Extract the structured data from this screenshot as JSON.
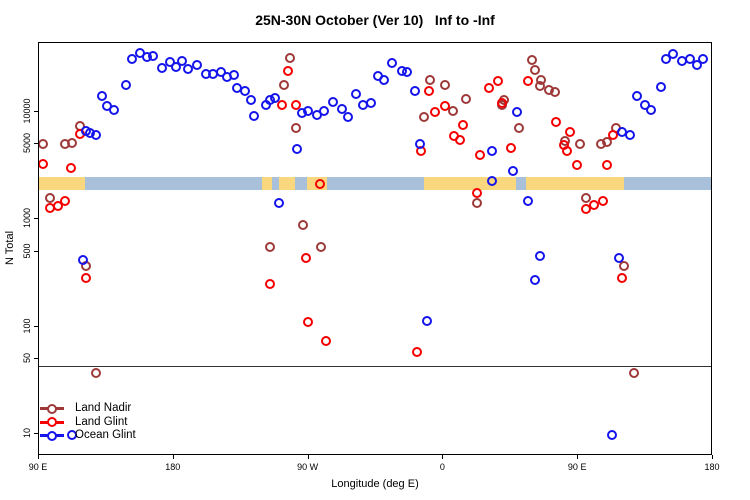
{
  "title": "25N-30N October (Ver 10)   Inf to -Inf",
  "axes": {
    "x_label": "Longitude (deg E)",
    "y_label": "N Total",
    "x_ticks": [
      {
        "label": "90 E",
        "deg": 90
      },
      {
        "label": "180",
        "deg": 180
      },
      {
        "label": "90 W",
        "deg": 270
      },
      {
        "label": "0",
        "deg": 360
      },
      {
        "label": "90 E",
        "deg": 450
      },
      {
        "label": "180",
        "deg": 540
      }
    ],
    "y_ticks": [
      {
        "label": "10000",
        "n": 10000
      },
      {
        "label": "5000",
        "n": 5000
      },
      {
        "label": "1000",
        "n": 1000
      },
      {
        "label": "500",
        "n": 500
      },
      {
        "label": "100",
        "n": 100
      },
      {
        "label": "50",
        "n": 50
      },
      {
        "label": "10",
        "n": 10
      }
    ]
  },
  "colors": {
    "land_nadir": "#9E3939",
    "land_glint": "#F50000",
    "ocean_glint": "#1414EB",
    "band_land": "#F8D77E",
    "band_ocean": "#A9C0DB",
    "reference_line": "#333333"
  },
  "legend": {
    "items": [
      {
        "key": "land_nadir",
        "label": "Land Nadir"
      },
      {
        "key": "land_glint",
        "label": "Land Glint"
      },
      {
        "key": "ocean_glint",
        "label": "Ocean Glint"
      }
    ]
  },
  "reference_line_n": 42,
  "map_band": {
    "n_center": 2100,
    "segments": [
      {
        "from_deg": 90,
        "to_deg": 121.5,
        "surface": "land"
      },
      {
        "from_deg": 121.5,
        "to_deg": 239.5,
        "surface": "ocean"
      },
      {
        "from_deg": 239.5,
        "to_deg": 246,
        "surface": "land"
      },
      {
        "from_deg": 246,
        "to_deg": 251,
        "surface": "ocean"
      },
      {
        "from_deg": 251,
        "to_deg": 261.5,
        "surface": "land"
      },
      {
        "from_deg": 261.5,
        "to_deg": 269.5,
        "surface": "ocean"
      },
      {
        "from_deg": 269.5,
        "to_deg": 283,
        "surface": "land"
      },
      {
        "from_deg": 283,
        "to_deg": 347.5,
        "surface": "ocean"
      },
      {
        "from_deg": 347.5,
        "to_deg": 409,
        "surface": "land"
      },
      {
        "from_deg": 409,
        "to_deg": 415.5,
        "surface": "ocean"
      },
      {
        "from_deg": 415.5,
        "to_deg": 481.5,
        "surface": "land"
      },
      {
        "from_deg": 481.5,
        "to_deg": 540,
        "surface": "ocean"
      }
    ]
  },
  "chart_data": {
    "type": "scatter",
    "title": "25N-30N October (Ver 10)   Inf to -Inf",
    "xlabel": "Longitude (deg E)",
    "ylabel": "N Total",
    "x_axis_deg_range": [
      90,
      540
    ],
    "y_log_range": [
      6,
      44000
    ],
    "grid": false,
    "legend_position": "bottom-left",
    "series": [
      {
        "name": "Land Nadir",
        "color_key": "land_nadir",
        "points": [
          {
            "lon": 93,
            "n": 4940
          },
          {
            "lon": 108,
            "n": 4940
          },
          {
            "lon": 113,
            "n": 5010
          },
          {
            "lon": 118,
            "n": 7240
          },
          {
            "lon": 98,
            "n": 1560
          },
          {
            "lon": 122,
            "n": 362
          },
          {
            "lon": 129,
            "n": 36
          },
          {
            "lon": 254,
            "n": 17700
          },
          {
            "lon": 258,
            "n": 31300
          },
          {
            "lon": 262,
            "n": 6960
          },
          {
            "lon": 267,
            "n": 866
          },
          {
            "lon": 245,
            "n": 544
          },
          {
            "lon": 279,
            "n": 537
          },
          {
            "lon": 348,
            "n": 8820
          },
          {
            "lon": 352,
            "n": 19700
          },
          {
            "lon": 362,
            "n": 17700
          },
          {
            "lon": 367,
            "n": 10100
          },
          {
            "lon": 376,
            "n": 13000
          },
          {
            "lon": 383,
            "n": 1390
          },
          {
            "lon": 400,
            "n": 11500
          },
          {
            "lon": 401,
            "n": 12800
          },
          {
            "lon": 411,
            "n": 6960
          },
          {
            "lon": 420,
            "n": 30200
          },
          {
            "lon": 422,
            "n": 24300
          },
          {
            "lon": 426,
            "n": 19700
          },
          {
            "lon": 425,
            "n": 17300
          },
          {
            "lon": 431,
            "n": 15900
          },
          {
            "lon": 435,
            "n": 15100
          },
          {
            "lon": 442,
            "n": 5310
          },
          {
            "lon": 452,
            "n": 4940
          },
          {
            "lon": 456,
            "n": 1560
          },
          {
            "lon": 466,
            "n": 4940
          },
          {
            "lon": 470,
            "n": 5160
          },
          {
            "lon": 476,
            "n": 6960
          },
          {
            "lon": 481,
            "n": 362
          },
          {
            "lon": 488,
            "n": 36
          }
        ]
      },
      {
        "name": "Land Glint",
        "color_key": "land_glint",
        "points": [
          {
            "lon": 93,
            "n": 3210
          },
          {
            "lon": 112,
            "n": 2950
          },
          {
            "lon": 118,
            "n": 6120
          },
          {
            "lon": 98,
            "n": 1240
          },
          {
            "lon": 103,
            "n": 1310
          },
          {
            "lon": 108,
            "n": 1450
          },
          {
            "lon": 122,
            "n": 276
          },
          {
            "lon": 253,
            "n": 11400
          },
          {
            "lon": 257,
            "n": 23800
          },
          {
            "lon": 262,
            "n": 11500
          },
          {
            "lon": 278,
            "n": 2080
          },
          {
            "lon": 269,
            "n": 424
          },
          {
            "lon": 245,
            "n": 244
          },
          {
            "lon": 270,
            "n": 109
          },
          {
            "lon": 282,
            "n": 72
          },
          {
            "lon": 343,
            "n": 57
          },
          {
            "lon": 346,
            "n": 4220
          },
          {
            "lon": 351,
            "n": 15300
          },
          {
            "lon": 355,
            "n": 9820
          },
          {
            "lon": 362,
            "n": 11100
          },
          {
            "lon": 368,
            "n": 5830
          },
          {
            "lon": 372,
            "n": 5420
          },
          {
            "lon": 374,
            "n": 7390
          },
          {
            "lon": 383,
            "n": 1720
          },
          {
            "lon": 385,
            "n": 3890
          },
          {
            "lon": 391,
            "n": 16400
          },
          {
            "lon": 397,
            "n": 19200
          },
          {
            "lon": 400,
            "n": 11900
          },
          {
            "lon": 406,
            "n": 4540
          },
          {
            "lon": 417,
            "n": 19200
          },
          {
            "lon": 436,
            "n": 7880
          },
          {
            "lon": 441,
            "n": 4870
          },
          {
            "lon": 443,
            "n": 4290
          },
          {
            "lon": 445,
            "n": 6390
          },
          {
            "lon": 450,
            "n": 3160
          },
          {
            "lon": 456,
            "n": 1220
          },
          {
            "lon": 461,
            "n": 1330
          },
          {
            "lon": 467,
            "n": 1460
          },
          {
            "lon": 470,
            "n": 3120
          },
          {
            "lon": 474,
            "n": 5950
          },
          {
            "lon": 480,
            "n": 279
          }
        ]
      },
      {
        "name": "Ocean Glint",
        "color_key": "ocean_glint",
        "points": [
          {
            "lon": 153,
            "n": 30600
          },
          {
            "lon": 158,
            "n": 34700
          },
          {
            "lon": 163,
            "n": 32000
          },
          {
            "lon": 167,
            "n": 33000
          },
          {
            "lon": 173,
            "n": 25300
          },
          {
            "lon": 178,
            "n": 28500
          },
          {
            "lon": 182,
            "n": 25900
          },
          {
            "lon": 186,
            "n": 29400
          },
          {
            "lon": 190,
            "n": 24700
          },
          {
            "lon": 196,
            "n": 26900
          },
          {
            "lon": 202,
            "n": 22200
          },
          {
            "lon": 207,
            "n": 22200
          },
          {
            "lon": 212,
            "n": 23200
          },
          {
            "lon": 216,
            "n": 20800
          },
          {
            "lon": 221,
            "n": 21700
          },
          {
            "lon": 223,
            "n": 16500
          },
          {
            "lon": 228,
            "n": 15500
          },
          {
            "lon": 232,
            "n": 12700
          },
          {
            "lon": 234,
            "n": 9000
          },
          {
            "lon": 242,
            "n": 11500
          },
          {
            "lon": 245,
            "n": 12700
          },
          {
            "lon": 248,
            "n": 13200
          },
          {
            "lon": 251,
            "n": 1400
          },
          {
            "lon": 263,
            "n": 4460
          },
          {
            "lon": 266,
            "n": 9600
          },
          {
            "lon": 270,
            "n": 10100
          },
          {
            "lon": 276,
            "n": 9150
          },
          {
            "lon": 281,
            "n": 9960
          },
          {
            "lon": 287,
            "n": 12300
          },
          {
            "lon": 293,
            "n": 10500
          },
          {
            "lon": 297,
            "n": 8760
          },
          {
            "lon": 302,
            "n": 14300
          },
          {
            "lon": 307,
            "n": 11500
          },
          {
            "lon": 312,
            "n": 11900
          },
          {
            "lon": 317,
            "n": 21100
          },
          {
            "lon": 321,
            "n": 19700
          },
          {
            "lon": 326,
            "n": 28100
          },
          {
            "lon": 333,
            "n": 23500
          },
          {
            "lon": 336,
            "n": 23000
          },
          {
            "lon": 342,
            "n": 15500
          },
          {
            "lon": 345,
            "n": 4940
          },
          {
            "lon": 350,
            "n": 111
          },
          {
            "lon": 393,
            "n": 4220
          },
          {
            "lon": 393,
            "n": 2240
          },
          {
            "lon": 407,
            "n": 2740
          },
          {
            "lon": 410,
            "n": 9820
          },
          {
            "lon": 417,
            "n": 1460
          },
          {
            "lon": 422,
            "n": 266
          },
          {
            "lon": 425,
            "n": 448
          },
          {
            "lon": 478,
            "n": 424
          },
          {
            "lon": 480,
            "n": 6390
          },
          {
            "lon": 485,
            "n": 6030
          },
          {
            "lon": 490,
            "n": 13700
          },
          {
            "lon": 495,
            "n": 11300
          },
          {
            "lon": 499,
            "n": 10300
          },
          {
            "lon": 506,
            "n": 16700
          },
          {
            "lon": 509,
            "n": 30800
          },
          {
            "lon": 514,
            "n": 34400
          },
          {
            "lon": 520,
            "n": 29200
          },
          {
            "lon": 525,
            "n": 30800
          },
          {
            "lon": 530,
            "n": 26700
          },
          {
            "lon": 534,
            "n": 30400
          },
          {
            "lon": 120,
            "n": 409
          },
          {
            "lon": 133,
            "n": 13700
          },
          {
            "lon": 136,
            "n": 11100
          },
          {
            "lon": 141,
            "n": 10300
          },
          {
            "lon": 149,
            "n": 17700
          },
          {
            "lon": 122,
            "n": 6520
          },
          {
            "lon": 125,
            "n": 6220
          },
          {
            "lon": 129,
            "n": 5990
          },
          {
            "lon": 473,
            "n": 9.5
          },
          {
            "lon": 113,
            "n": 9.6
          }
        ]
      }
    ]
  }
}
